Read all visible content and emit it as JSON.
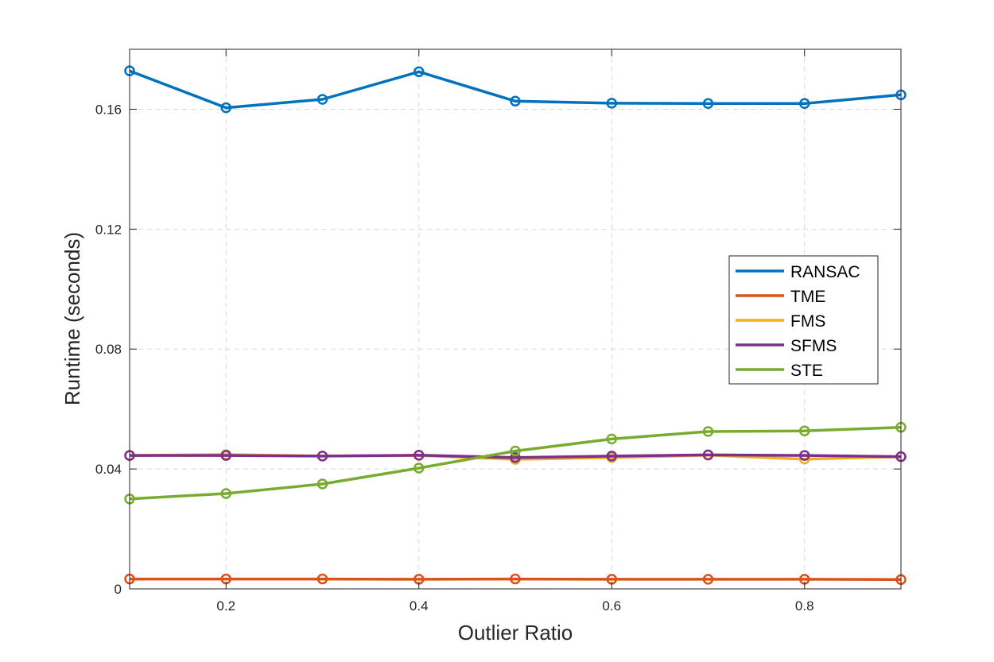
{
  "chart_data": {
    "type": "line",
    "title": "",
    "xlabel": "Outlier Ratio",
    "ylabel": "Runtime (seconds)",
    "xlim": [
      0.1,
      0.9
    ],
    "ylim": [
      0,
      0.18
    ],
    "xticks": [
      0.2,
      0.4,
      0.6,
      0.8
    ],
    "xtick_labels": [
      "0.2",
      "0.4",
      "0.6",
      "0.8"
    ],
    "yticks": [
      0,
      0.04,
      0.08,
      0.12,
      0.16
    ],
    "ytick_labels": [
      "0",
      "0.04",
      "0.08",
      "0.12",
      "0.16"
    ],
    "grid": true,
    "legend_position": "center-right",
    "x": [
      0.1,
      0.2,
      0.3,
      0.4,
      0.5,
      0.6,
      0.7,
      0.8,
      0.9
    ],
    "series": [
      {
        "name": "RANSAC",
        "color": "#0072BD",
        "values": [
          0.1728,
          0.1605,
          0.1633,
          0.1725,
          0.1627,
          0.162,
          0.1619,
          0.1619,
          0.1648
        ]
      },
      {
        "name": "TME",
        "color": "#D95319",
        "values": [
          0.0033,
          0.0033,
          0.0033,
          0.0032,
          0.0033,
          0.0032,
          0.0032,
          0.0032,
          0.0031
        ]
      },
      {
        "name": "FMS",
        "color": "#EDB120",
        "values": [
          0.0445,
          0.0448,
          0.0443,
          0.0445,
          0.0432,
          0.0438,
          0.0446,
          0.0433,
          0.0441
        ]
      },
      {
        "name": "SFMS",
        "color": "#7E2F8E",
        "values": [
          0.0445,
          0.0445,
          0.0443,
          0.0446,
          0.0438,
          0.0443,
          0.0447,
          0.0445,
          0.0441
        ]
      },
      {
        "name": "STE",
        "color": "#77AC30",
        "values": [
          0.03,
          0.0318,
          0.035,
          0.0403,
          0.046,
          0.05,
          0.0525,
          0.0527,
          0.0539
        ]
      }
    ]
  }
}
